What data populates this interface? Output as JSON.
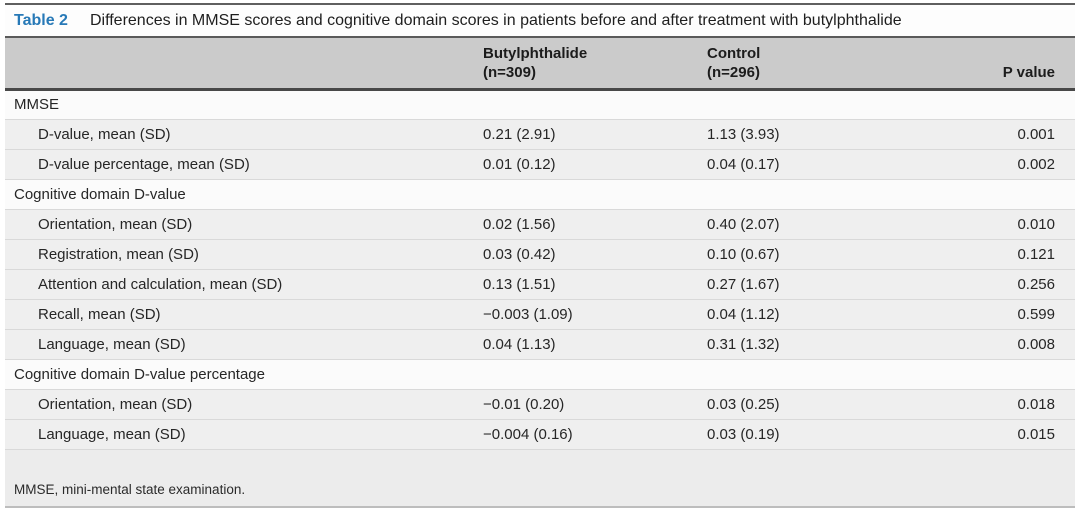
{
  "table": {
    "label": "Table 2",
    "title": "Differences in MMSE scores and cognitive domain scores in patients before and after treatment with butylphthalide",
    "header": {
      "group_col": "",
      "butylphthalide_line1": "Butylphthalide",
      "butylphthalide_line2": "(n=309)",
      "control_line1": "Control",
      "control_line2": "(n=296)",
      "p_value": "P value"
    },
    "rows": [
      {
        "type": "section",
        "label": "MMSE",
        "butylphthalide": "",
        "control": "",
        "p": ""
      },
      {
        "type": "data",
        "label": "D-value, mean (SD)",
        "butylphthalide": "0.21 (2.91)",
        "control": "1.13 (3.93)",
        "p": "0.001"
      },
      {
        "type": "data",
        "label": "D-value percentage, mean (SD)",
        "butylphthalide": "0.01 (0.12)",
        "control": "0.04 (0.17)",
        "p": "0.002"
      },
      {
        "type": "section",
        "label": "Cognitive domain D-value",
        "butylphthalide": "",
        "control": "",
        "p": ""
      },
      {
        "type": "data",
        "label": "Orientation, mean (SD)",
        "butylphthalide": "0.02 (1.56)",
        "control": "0.40 (2.07)",
        "p": "0.010"
      },
      {
        "type": "data",
        "label": "Registration, mean (SD)",
        "butylphthalide": "0.03 (0.42)",
        "control": "0.10 (0.67)",
        "p": "0.121"
      },
      {
        "type": "data",
        "label": "Attention and calculation, mean (SD)",
        "butylphthalide": "0.13 (1.51)",
        "control": "0.27 (1.67)",
        "p": "0.256"
      },
      {
        "type": "data",
        "label": "Recall, mean (SD)",
        "butylphthalide": "−0.003 (1.09)",
        "control": "0.04 (1.12)",
        "p": "0.599"
      },
      {
        "type": "data",
        "label": "Language, mean (SD)",
        "butylphthalide": "0.04 (1.13)",
        "control": "0.31 (1.32)",
        "p": "0.008"
      },
      {
        "type": "section",
        "label": "Cognitive domain D-value percentage",
        "butylphthalide": "",
        "control": "",
        "p": ""
      },
      {
        "type": "data",
        "label": "Orientation, mean (SD)",
        "butylphthalide": "−0.01 (0.20)",
        "control": "0.03 (0.25)",
        "p": "0.018"
      },
      {
        "type": "data",
        "label": "Language, mean (SD)",
        "butylphthalide": "−0.004 (0.16)",
        "control": "0.03 (0.19)",
        "p": "0.015"
      }
    ],
    "footnote": "MMSE, mini-mental state examination.",
    "colors": {
      "accent_blue": "#2779b7",
      "header_bg": "#cbcbcb",
      "data_row_bg": "#efefef",
      "section_row_bg": "#fbfbfb",
      "footnote_bg": "#ececec"
    }
  }
}
